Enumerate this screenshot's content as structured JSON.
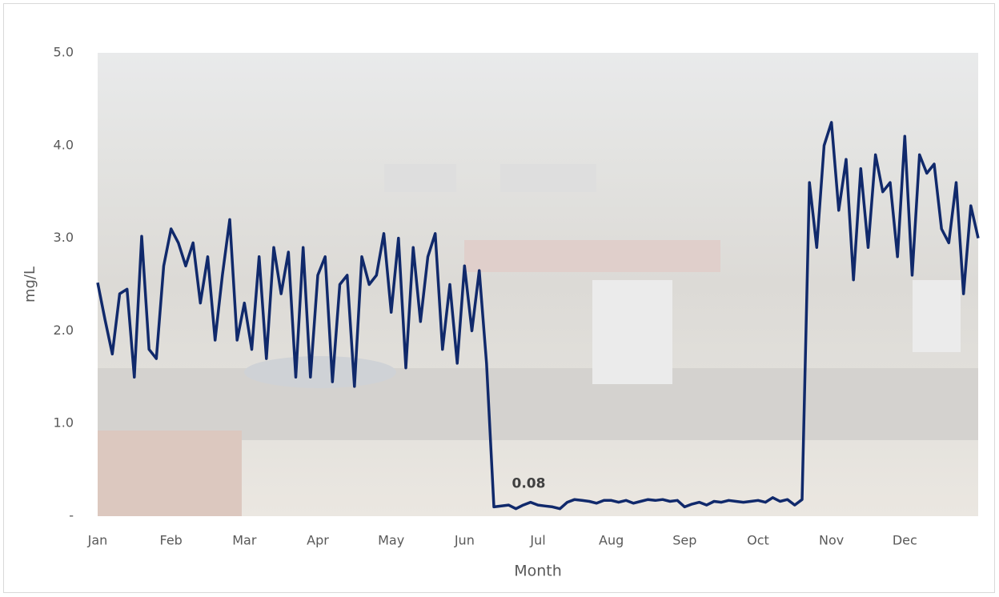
{
  "chart_data": {
    "type": "line",
    "x_label": "Month",
    "y_label": "mg/L",
    "categories": [
      "Jan",
      null,
      null,
      null,
      null,
      null,
      null,
      null,
      null,
      null,
      "Feb",
      null,
      null,
      null,
      null,
      null,
      null,
      null,
      null,
      null,
      "Mar",
      null,
      null,
      null,
      null,
      null,
      null,
      null,
      null,
      null,
      "Apr",
      null,
      null,
      null,
      null,
      null,
      null,
      null,
      null,
      null,
      "May",
      null,
      null,
      null,
      null,
      null,
      null,
      null,
      null,
      null,
      "Jun",
      null,
      null,
      null,
      null,
      null,
      null,
      null,
      null,
      null,
      "Jul",
      null,
      null,
      null,
      null,
      null,
      null,
      null,
      null,
      null,
      "Aug",
      null,
      null,
      null,
      null,
      null,
      null,
      null,
      null,
      null,
      "Sep",
      null,
      null,
      null,
      null,
      null,
      null,
      null,
      null,
      null,
      "Oct",
      null,
      null,
      null,
      null,
      null,
      null,
      null,
      null,
      null,
      "Nov",
      null,
      null,
      null,
      null,
      null,
      null,
      null,
      null,
      null,
      "Dec",
      null,
      null,
      null,
      null,
      null,
      null,
      null,
      null,
      null,
      null
    ],
    "series": [
      {
        "color": "#10296b",
        "values": [
          2.52,
          2.12,
          1.75,
          2.4,
          2.45,
          1.5,
          3.02,
          1.8,
          1.7,
          2.7,
          3.1,
          2.95,
          2.7,
          2.95,
          2.3,
          2.8,
          1.9,
          2.6,
          3.2,
          1.9,
          2.3,
          1.8,
          2.8,
          1.7,
          2.9,
          2.4,
          2.85,
          1.5,
          2.9,
          1.5,
          2.6,
          2.8,
          1.45,
          2.5,
          2.6,
          1.4,
          2.8,
          2.5,
          2.6,
          3.05,
          2.2,
          3.0,
          1.6,
          2.9,
          2.1,
          2.8,
          3.05,
          1.8,
          2.5,
          1.65,
          2.7,
          2.0,
          2.65,
          1.65,
          0.1,
          0.11,
          0.12,
          0.08,
          0.12,
          0.15,
          0.12,
          0.11,
          0.1,
          0.08,
          0.15,
          0.18,
          0.17,
          0.16,
          0.14,
          0.17,
          0.17,
          0.15,
          0.17,
          0.14,
          0.16,
          0.18,
          0.17,
          0.18,
          0.16,
          0.17,
          0.1,
          0.13,
          0.15,
          0.12,
          0.16,
          0.15,
          0.17,
          0.16,
          0.15,
          0.16,
          0.17,
          0.15,
          0.2,
          0.16,
          0.18,
          0.12,
          0.18,
          3.6,
          2.9,
          4.0,
          4.25,
          3.3,
          3.85,
          2.55,
          3.75,
          2.9,
          3.9,
          3.5,
          3.6,
          2.8,
          4.1,
          2.6,
          3.9,
          3.7,
          3.8,
          3.1,
          2.95,
          3.6,
          2.4,
          3.35,
          3.0
        ],
        "value_labels": [
          null,
          null,
          null,
          null,
          null,
          null,
          null,
          null,
          null,
          null,
          null,
          null,
          null,
          null,
          null,
          null,
          null,
          null,
          null,
          null,
          null,
          null,
          null,
          null,
          null,
          null,
          null,
          null,
          null,
          null,
          null,
          null,
          null,
          null,
          null,
          null,
          null,
          null,
          null,
          null,
          null,
          null,
          null,
          null,
          null,
          null,
          null,
          null,
          null,
          null,
          null,
          null,
          null,
          null,
          null,
          null,
          null,
          "0.08",
          null,
          null,
          null,
          null,
          null,
          null,
          null,
          null,
          null,
          null,
          null,
          null,
          null,
          null,
          null,
          null,
          null,
          null,
          null,
          null,
          null,
          null,
          null,
          null,
          null,
          null,
          null,
          null,
          null,
          null,
          null,
          null,
          null,
          null,
          null,
          null,
          null,
          null,
          null,
          null,
          null,
          null,
          null,
          null,
          null,
          null,
          null,
          null,
          null,
          null,
          null,
          null,
          null,
          null,
          null,
          null,
          null,
          null,
          null,
          null,
          null,
          null,
          null
        ]
      }
    ],
    "ylim": [
      0,
      5
    ],
    "yticks": [
      {
        "value": 0,
        "label": "-"
      },
      {
        "value": 1,
        "label": "1.0"
      },
      {
        "value": 2,
        "label": "2.0"
      },
      {
        "value": 3,
        "label": "3.0"
      },
      {
        "value": 4,
        "label": "4.0"
      },
      {
        "value": 5,
        "label": "5.0"
      }
    ]
  }
}
